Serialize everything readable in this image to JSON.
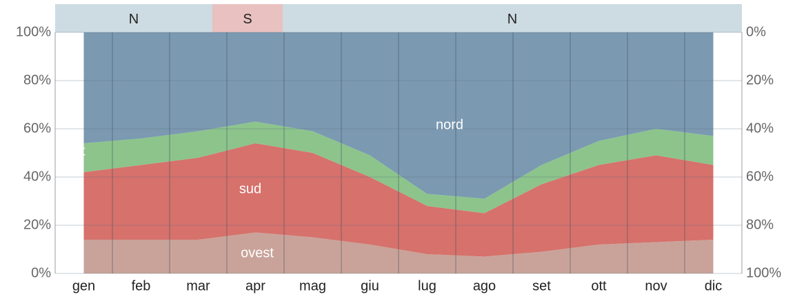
{
  "chart_data": {
    "type": "stacked_area",
    "direction_bands": [
      {
        "label": "N"
      },
      {
        "label": "S"
      },
      {
        "label": "N"
      }
    ],
    "categories": [
      "gen",
      "feb",
      "mar",
      "apr",
      "mag",
      "giu",
      "lug",
      "ago",
      "set",
      "ott",
      "nov",
      "dic"
    ],
    "series": [
      {
        "name": "ovest",
        "color": "#c9a39a",
        "values": [
          14,
          14,
          14,
          17,
          15,
          12,
          8,
          7,
          9,
          12,
          13,
          14
        ]
      },
      {
        "name": "sud",
        "color": "#d6716c",
        "values": [
          28,
          31,
          34,
          37,
          35,
          28,
          20,
          18,
          28,
          33,
          36,
          31
        ]
      },
      {
        "name": "est",
        "color": "#8cc48c",
        "values": [
          12,
          11,
          11,
          9,
          9,
          9,
          5,
          6,
          8,
          10,
          11,
          12
        ]
      },
      {
        "name": "nord",
        "color": "#7b99b1",
        "values": [
          46,
          44,
          41,
          37,
          41,
          51,
          67,
          69,
          55,
          45,
          40,
          43
        ]
      }
    ],
    "ylim": [
      0,
      100
    ],
    "yticks": [
      {
        "value": 0,
        "label": "0%"
      },
      {
        "value": 20,
        "label": "20%"
      },
      {
        "value": 40,
        "label": "40%"
      },
      {
        "value": 60,
        "label": "60%"
      },
      {
        "value": 80,
        "label": "80%"
      },
      {
        "value": 100,
        "label": "100%"
      }
    ],
    "y2lim": [
      100,
      0
    ],
    "y2ticks": [
      {
        "value": 0,
        "label": "0%"
      },
      {
        "value": 20,
        "label": "20%"
      },
      {
        "value": 40,
        "label": "40%"
      },
      {
        "value": 60,
        "label": "60%"
      },
      {
        "value": 80,
        "label": "80%"
      },
      {
        "value": 100,
        "label": "100%"
      }
    ],
    "grid": true
  }
}
